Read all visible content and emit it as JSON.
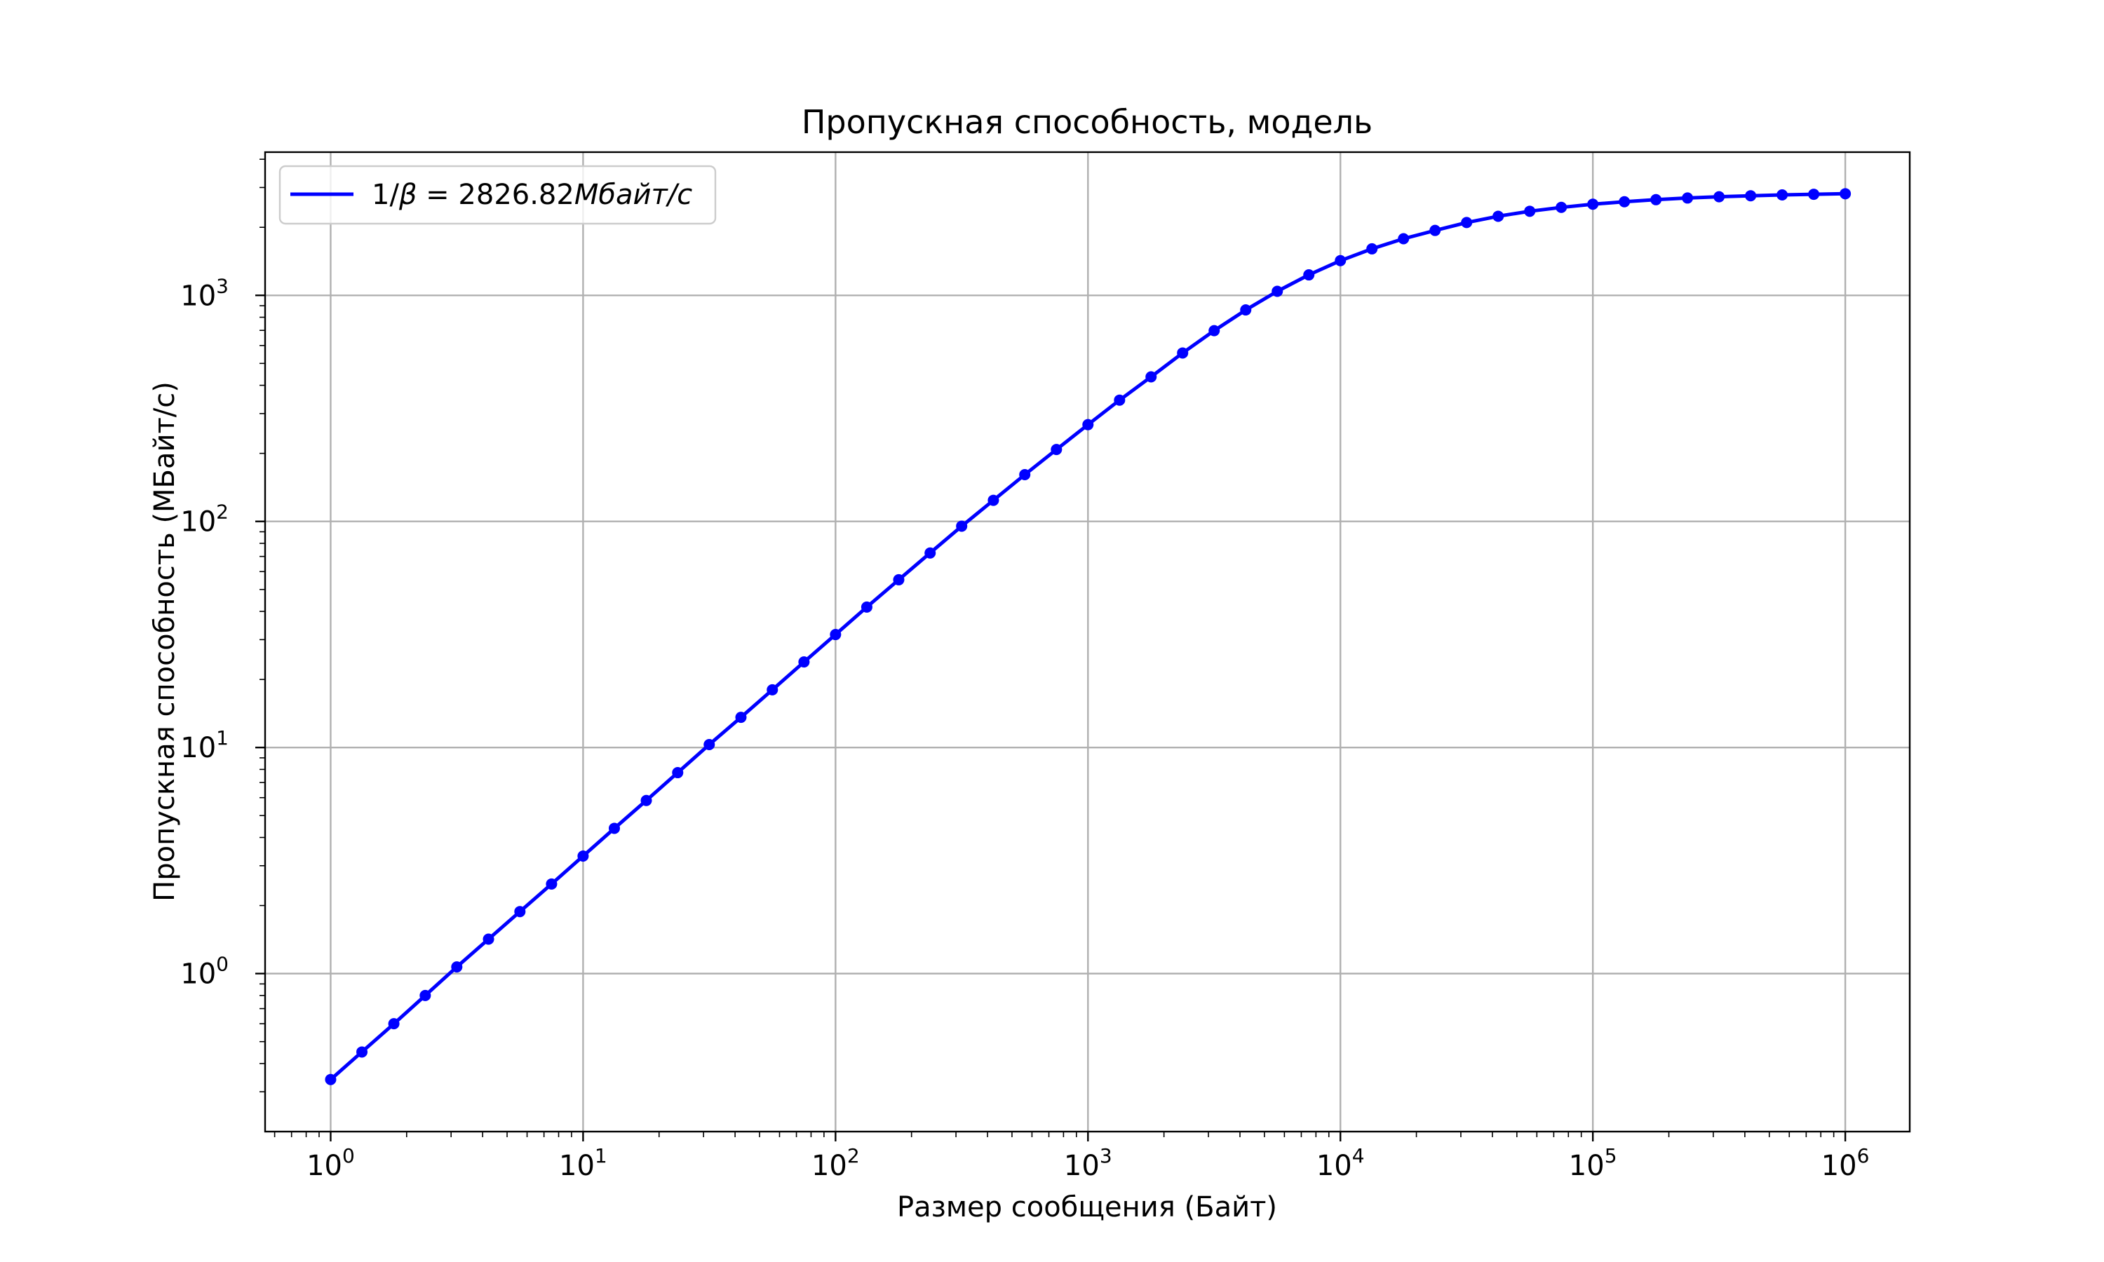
{
  "chart_data": {
    "type": "line",
    "title": "Пропускная способность, модель",
    "xlabel": "Размер сообщения (Байт)",
    "ylabel": "Пропускная способность (МБайт/с)",
    "xscale": "log",
    "yscale": "log",
    "xlim": [
      0.55,
      1800000
    ],
    "ylim": [
      0.2,
      4300
    ],
    "grid": true,
    "legend_position": "top-left",
    "x_ticks": [
      {
        "base": "10",
        "exp": "0",
        "value": 1
      },
      {
        "base": "10",
        "exp": "1",
        "value": 10
      },
      {
        "base": "10",
        "exp": "2",
        "value": 100
      },
      {
        "base": "10",
        "exp": "3",
        "value": 1000
      },
      {
        "base": "10",
        "exp": "4",
        "value": 10000
      },
      {
        "base": "10",
        "exp": "5",
        "value": 100000
      },
      {
        "base": "10",
        "exp": "6",
        "value": 1000000
      }
    ],
    "y_ticks": [
      {
        "base": "10",
        "exp": "0",
        "value": 1
      },
      {
        "base": "10",
        "exp": "1",
        "value": 10
      },
      {
        "base": "10",
        "exp": "2",
        "value": 100
      },
      {
        "base": "10",
        "exp": "3",
        "value": 1000
      }
    ],
    "series": [
      {
        "name": "1/β = 2826.82Мбайт/с",
        "legend_parts": {
          "prefix": "1/",
          "symbol": "β",
          "eq": " = ",
          "value": "2826.82",
          "unit": "Мбайт/с"
        },
        "color": "#0000ff",
        "marker": "circle",
        "x": [
          1,
          1.33,
          1.78,
          2.37,
          3.16,
          4.22,
          5.62,
          7.5,
          10,
          13.3,
          17.8,
          23.7,
          31.6,
          42.2,
          56.2,
          75,
          100,
          133,
          178,
          237,
          316,
          422,
          562,
          750,
          1000,
          1334,
          1778,
          2371,
          3162,
          4217,
          5623,
          7499,
          10000,
          13335,
          17783,
          23714,
          31623,
          42170,
          56234,
          74989,
          100000,
          133352,
          177828,
          237137,
          316228,
          421697,
          562341,
          749894,
          1000000
        ],
        "y": [
          0.34,
          0.45,
          0.6,
          0.8,
          1.07,
          1.42,
          1.88,
          2.49,
          3.31,
          4.39,
          5.83,
          7.74,
          10.3,
          13.6,
          18.0,
          23.9,
          31.6,
          41.8,
          55.2,
          72.5,
          95.3,
          124,
          161,
          208,
          268,
          344,
          436,
          556,
          698,
          862,
          1042,
          1232,
          1424,
          1606,
          1780,
          1937,
          2100,
          2238,
          2355,
          2450,
          2530,
          2595,
          2650,
          2695,
          2730,
          2758,
          2782,
          2800,
          2815
        ]
      }
    ]
  }
}
